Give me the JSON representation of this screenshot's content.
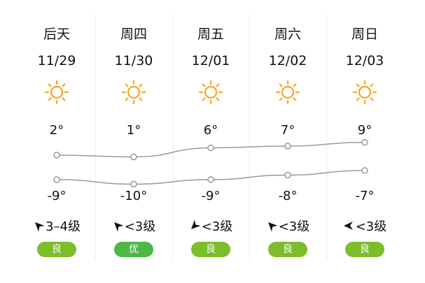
{
  "days": [
    {
      "label": "后天",
      "date": "11/29",
      "icon": "sun-icon",
      "high": 2,
      "low": -9,
      "wind": "3–4级",
      "wind_dir": "northwest",
      "aqi": "良"
    },
    {
      "label": "周四",
      "date": "11/30",
      "icon": "sun-icon",
      "high": 1,
      "low": -10,
      "wind": "<3级",
      "wind_dir": "northwest",
      "aqi": "优"
    },
    {
      "label": "周五",
      "date": "12/01",
      "icon": "sun-icon",
      "high": 6,
      "low": -9,
      "wind": "<3级",
      "wind_dir": "southwest",
      "aqi": "良"
    },
    {
      "label": "周六",
      "date": "12/02",
      "icon": "sun-icon",
      "high": 7,
      "low": -8,
      "wind": "<3级",
      "wind_dir": "northwest",
      "aqi": "良"
    },
    {
      "label": "周日",
      "date": "12/03",
      "icon": "sun-icon",
      "high": 9,
      "low": -7,
      "wind": "<3级",
      "wind_dir": "west",
      "aqi": "良"
    }
  ],
  "degree_unit": "°",
  "colors": {
    "sun": "#f5a623",
    "line": "#999999",
    "aqi_good": "#7cbd2a",
    "aqi_excellent": "#4cb848"
  }
}
